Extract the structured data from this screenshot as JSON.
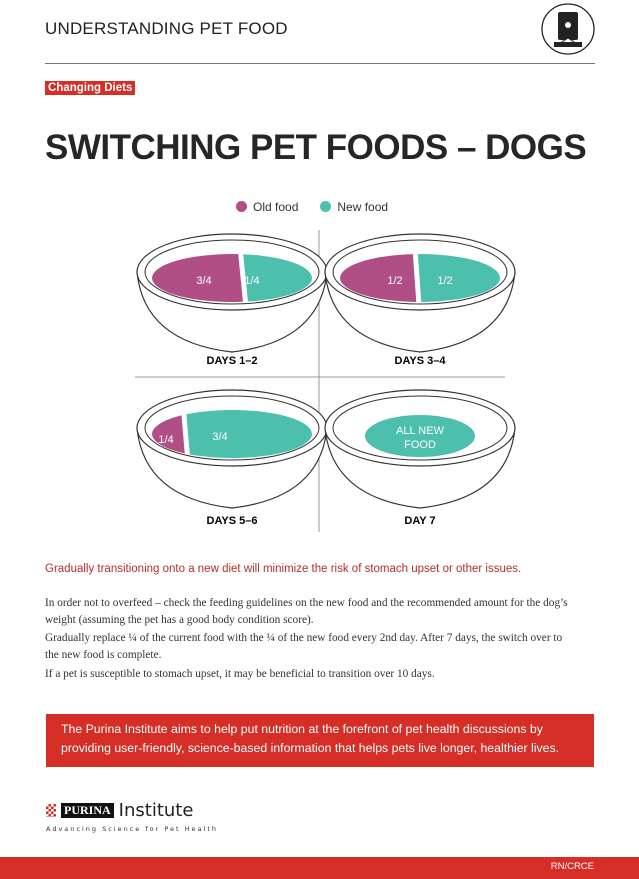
{
  "header": {
    "title": "UNDERSTANDING PET FOOD",
    "icon": "pet-food-bag-icon"
  },
  "badge": "Changing Diets",
  "title": "SWITCHING PET FOODS – DOGS",
  "legend": [
    {
      "label": "Old food",
      "color": "#b04f86"
    },
    {
      "label": "New food",
      "color": "#4dbfad"
    }
  ],
  "bowls": [
    {
      "label": "DAYS 1–2",
      "old": "3/4",
      "new": "1/4"
    },
    {
      "label": "DAYS 3–4",
      "old": "1/2",
      "new": "1/2"
    },
    {
      "label": "DAYS 5–6",
      "old": "1/4",
      "new": "3/4"
    },
    {
      "label": "DAY 7",
      "all_line1": "ALL NEW",
      "all_line2": "FOOD"
    }
  ],
  "tagline": "Gradually transitioning onto a new diet will minimize the risk of stomach upset or other issues.",
  "paragraphs": [
    "In order not to overfeed – check the feeding guidelines on the new food and the recommended amount for the dog’s weight (assuming the pet has a good body condition score).",
    "Gradually replace ¼ of the current food with the ¼ of the new food every 2nd day. After 7 days, the switch over to the new food is complete.",
    "If a pet is susceptible to stomach upset, it may be beneficial to transition over 10 days."
  ],
  "banner": "The Purina Institute aims to help put nutrition at the forefront of pet health discussions by providing user-friendly, science-based information that helps pets live longer, healthier lives.",
  "logo": {
    "brand": "PURINA",
    "name": "Institute",
    "slogan": "Advancing Science for Pet Health"
  },
  "footer": {
    "code": "RN/CRCE"
  }
}
